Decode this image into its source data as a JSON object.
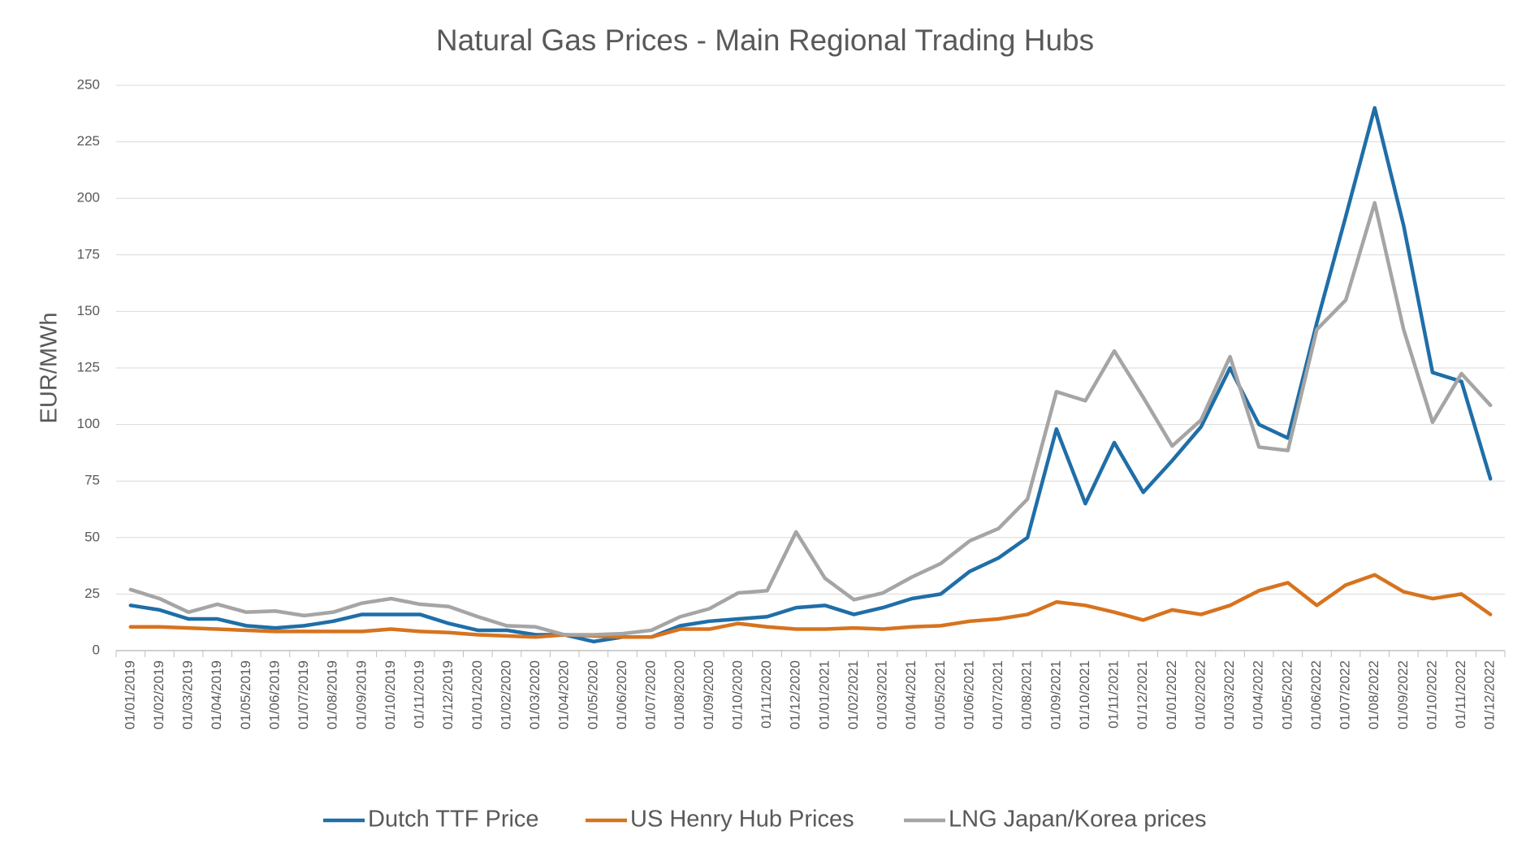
{
  "chart_data": {
    "type": "line",
    "title": "Natural Gas Prices - Main Regional Trading Hubs",
    "y_label": "EUR/MWh",
    "categories": [
      "01/01/2019",
      "01/02/2019",
      "01/03/2019",
      "01/04/2019",
      "01/05/2019",
      "01/06/2019",
      "01/07/2019",
      "01/08/2019",
      "01/09/2019",
      "01/10/2019",
      "01/11/2019",
      "01/12/2019",
      "01/01/2020",
      "01/02/2020",
      "01/03/2020",
      "01/04/2020",
      "01/05/2020",
      "01/06/2020",
      "01/07/2020",
      "01/08/2020",
      "01/09/2020",
      "01/10/2020",
      "01/11/2020",
      "01/12/2020",
      "01/01/2021",
      "01/02/2021",
      "01/03/2021",
      "01/04/2021",
      "01/05/2021",
      "01/06/2021",
      "01/07/2021",
      "01/08/2021",
      "01/09/2021",
      "01/10/2021",
      "01/11/2021",
      "01/12/2021",
      "01/01/2022",
      "01/02/2022",
      "01/03/2022",
      "01/04/2022",
      "01/05/2022",
      "01/06/2022",
      "01/07/2022",
      "01/08/2022",
      "01/09/2022",
      "01/10/2022",
      "01/11/2022",
      "01/12/2022"
    ],
    "series": [
      {
        "name": "Dutch TTF Price",
        "color": "#1f6ea8",
        "values": [
          20,
          18,
          14,
          14,
          11,
          10,
          11,
          13,
          16,
          16,
          16,
          12,
          9,
          9,
          7,
          7,
          4,
          6,
          6,
          11,
          13,
          14,
          15,
          19,
          20,
          16,
          19,
          23,
          25,
          35,
          41,
          50,
          98,
          65,
          92,
          70,
          84,
          99,
          125,
          100,
          94,
          145,
          192,
          240,
          188,
          123,
          119,
          76
        ]
      },
      {
        "name": "US Henry Hub Prices",
        "color": "#d7731e",
        "values": [
          10.5,
          10.5,
          10,
          9.5,
          9,
          8.5,
          8.5,
          8.5,
          8.5,
          9.5,
          8.5,
          8,
          7,
          6.5,
          6,
          7,
          6.5,
          6,
          6,
          9.5,
          9.5,
          12,
          10.5,
          9.5,
          9.5,
          10,
          9.5,
          10.5,
          11,
          13,
          14,
          16,
          21.5,
          20,
          17,
          13.5,
          18,
          16,
          20,
          26.5,
          30,
          20,
          29,
          33.5,
          26,
          23,
          25,
          16
        ]
      },
      {
        "name": "LNG Japan/Korea prices",
        "color": "#a5a5a5",
        "values": [
          27,
          23,
          17,
          20.5,
          17,
          17.5,
          15.5,
          17,
          21,
          23,
          20.5,
          19.5,
          15,
          11,
          10.5,
          7,
          7,
          7.5,
          9,
          15,
          18.5,
          25.5,
          26.5,
          52.5,
          32,
          22.5,
          25.5,
          32.5,
          38.5,
          48.5,
          54,
          67,
          114.5,
          110.5,
          132.5,
          112,
          90.5,
          102,
          130,
          90,
          88.5,
          142,
          155,
          198,
          142,
          101,
          122.5,
          108.5
        ]
      }
    ],
    "ylim": [
      0,
      250
    ],
    "yticks": [
      0,
      25,
      50,
      75,
      100,
      125,
      150,
      175,
      200,
      225,
      250
    ],
    "grid": true,
    "legend": "bottom"
  }
}
